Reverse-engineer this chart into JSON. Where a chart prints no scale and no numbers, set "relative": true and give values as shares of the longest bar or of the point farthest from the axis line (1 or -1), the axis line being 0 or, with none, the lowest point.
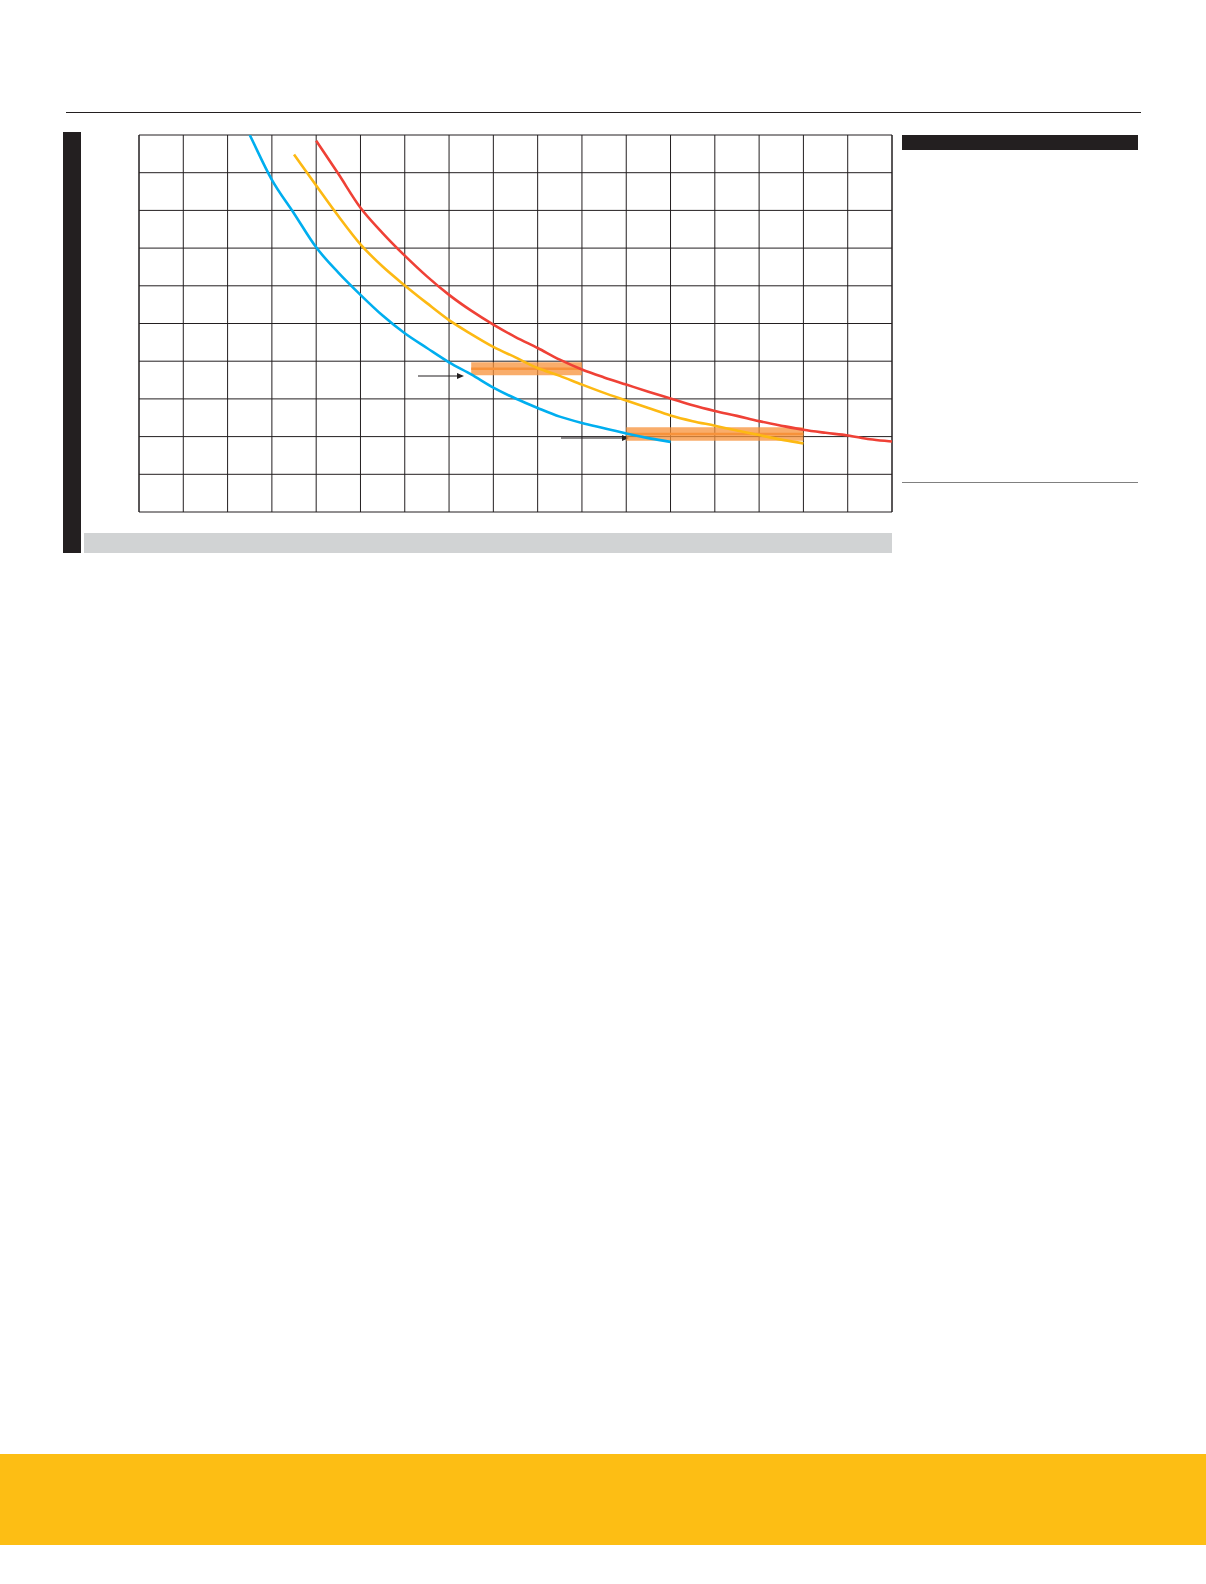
{
  "chart_data": {
    "type": "line",
    "relative": true,
    "grid": true,
    "tick_labels": false,
    "legend": false,
    "marker": "none",
    "categories": [
      null,
      null,
      null,
      null,
      null,
      null,
      null,
      null,
      null,
      null,
      null,
      null,
      null,
      null,
      null,
      null,
      null,
      null,
      null,
      null,
      null,
      null,
      null,
      null,
      null,
      null,
      null,
      null,
      null,
      null,
      null,
      null,
      null,
      null,
      null
    ],
    "series": [
      {
        "color": "#00aeef",
        "values": [
          null,
          null,
          null,
          null,
          null,
          1.0,
          0.881,
          0.792,
          0.702,
          0.635,
          0.576,
          0.521,
          0.474,
          0.435,
          0.397,
          0.365,
          0.33,
          0.301,
          0.276,
          0.253,
          0.236,
          0.222,
          0.208,
          0.196,
          0.186,
          null,
          null,
          null,
          null,
          null,
          null,
          null,
          null,
          null,
          null
        ]
      },
      {
        "color": "#fdb913",
        "values": [
          null,
          null,
          null,
          null,
          null,
          null,
          null,
          0.948,
          0.866,
          0.785,
          0.71,
          0.651,
          0.601,
          0.554,
          0.509,
          0.472,
          0.438,
          0.41,
          0.382,
          0.361,
          0.338,
          0.316,
          0.296,
          0.276,
          0.256,
          0.241,
          0.229,
          0.216,
          0.204,
          0.192,
          0.182,
          null,
          null,
          null,
          null
        ]
      },
      {
        "color": "#f7923a",
        "values": [
          null,
          null,
          null,
          null,
          null,
          null,
          null,
          null,
          null,
          null,
          null,
          null,
          null,
          null,
          null,
          0.38,
          0.38,
          0.38,
          0.38,
          0.38,
          0.38,
          null,
          null,
          null,
          null,
          null,
          null,
          null,
          null,
          null,
          null,
          null,
          null,
          null,
          null
        ],
        "lower": [
          null,
          null,
          null,
          null,
          null,
          null,
          null,
          null,
          null,
          null,
          null,
          null,
          null,
          null,
          null,
          0.363,
          0.363,
          0.363,
          0.363,
          0.363,
          0.363,
          null,
          null,
          null,
          null,
          null,
          null,
          null,
          null,
          null,
          null,
          null,
          null,
          null,
          null
        ],
        "upper": [
          null,
          null,
          null,
          null,
          null,
          null,
          null,
          null,
          null,
          null,
          null,
          null,
          null,
          null,
          null,
          0.397,
          0.397,
          0.397,
          0.397,
          0.397,
          0.397,
          null,
          null,
          null,
          null,
          null,
          null,
          null,
          null,
          null,
          null,
          null,
          null,
          null,
          null
        ]
      },
      {
        "color": "#f7923a",
        "values": [
          null,
          null,
          null,
          null,
          null,
          null,
          null,
          null,
          null,
          null,
          null,
          null,
          null,
          null,
          null,
          null,
          null,
          null,
          null,
          null,
          null,
          null,
          0.207,
          0.207,
          0.207,
          0.207,
          0.207,
          0.207,
          0.207,
          0.207,
          0.207,
          null,
          null,
          null,
          null
        ],
        "lower": [
          null,
          null,
          null,
          null,
          null,
          null,
          null,
          null,
          null,
          null,
          null,
          null,
          null,
          null,
          null,
          null,
          null,
          null,
          null,
          null,
          null,
          null,
          0.189,
          0.189,
          0.189,
          0.189,
          0.189,
          0.189,
          0.189,
          0.189,
          0.189,
          null,
          null,
          null,
          null
        ],
        "upper": [
          null,
          null,
          null,
          null,
          null,
          null,
          null,
          null,
          null,
          null,
          null,
          null,
          null,
          null,
          null,
          null,
          null,
          null,
          null,
          null,
          null,
          null,
          0.225,
          0.225,
          0.225,
          0.225,
          0.225,
          0.225,
          0.225,
          0.225,
          0.225,
          null,
          null,
          null,
          null
        ]
      },
      {
        "color": "#ef4136",
        "values": [
          null,
          null,
          null,
          null,
          null,
          null,
          null,
          null,
          0.985,
          0.897,
          0.807,
          0.74,
          0.68,
          0.625,
          0.576,
          0.534,
          0.497,
          0.464,
          0.435,
          0.404,
          0.378,
          0.357,
          0.338,
          0.319,
          0.301,
          0.283,
          0.268,
          0.255,
          0.241,
          0.229,
          0.218,
          0.21,
          0.203,
          0.193,
          0.187
        ]
      }
    ]
  }
}
